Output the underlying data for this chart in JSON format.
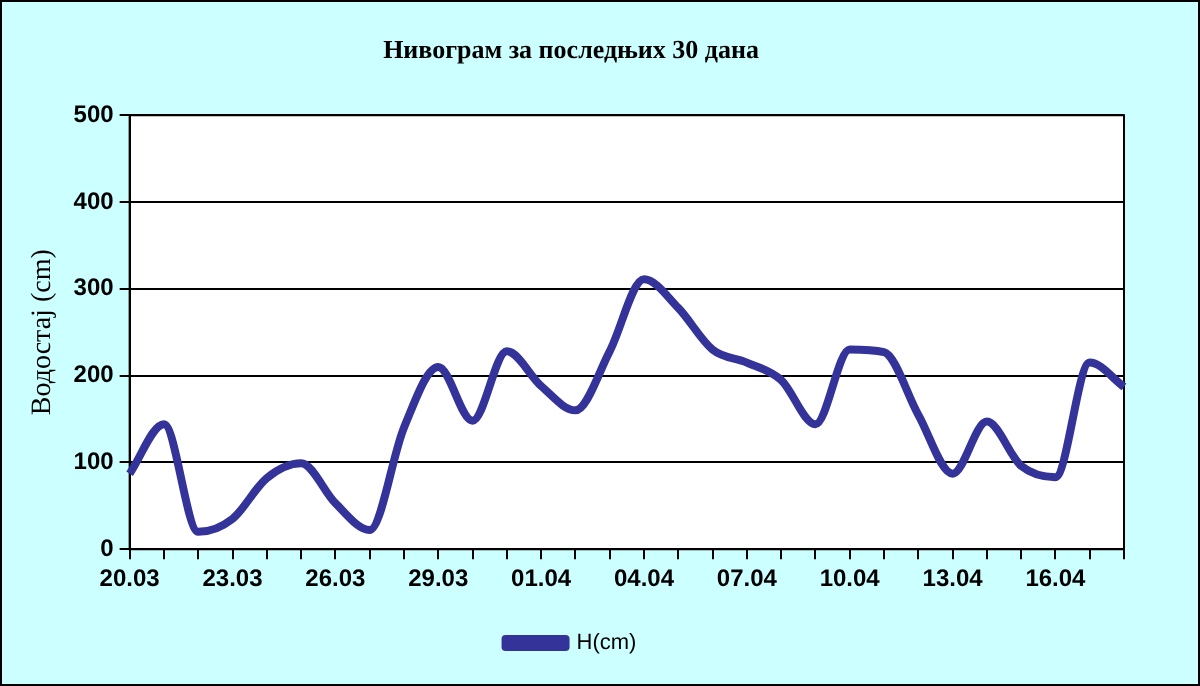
{
  "chart_data": {
    "type": "line",
    "title": "Нивограм за последњих 30 дана",
    "ylabel": "Водостај (cm)",
    "categories": [
      "20.03",
      null,
      null,
      "23.03",
      null,
      null,
      "26.03",
      null,
      null,
      "29.03",
      null,
      null,
      "01.04",
      null,
      null,
      "04.04",
      null,
      null,
      "07.04",
      null,
      null,
      "10.04",
      null,
      null,
      "13.04",
      null,
      null,
      "16.04",
      null,
      null
    ],
    "series": [
      {
        "name": "H(cm)",
        "color": "#333399",
        "values": [
          87,
          144,
          20,
          35,
          82,
          99,
          53,
          22,
          140,
          210,
          148,
          228,
          188,
          160,
          228,
          311,
          278,
          230,
          215,
          195,
          144,
          230,
          227,
          155,
          87,
          147,
          96,
          83,
          215,
          187
        ]
      }
    ],
    "ylim": [
      0,
      500
    ],
    "yticks": [
      0,
      100,
      200,
      300,
      400,
      500
    ],
    "grid": "y",
    "legend": "bottom",
    "marker": "none",
    "line_style": "solid"
  }
}
